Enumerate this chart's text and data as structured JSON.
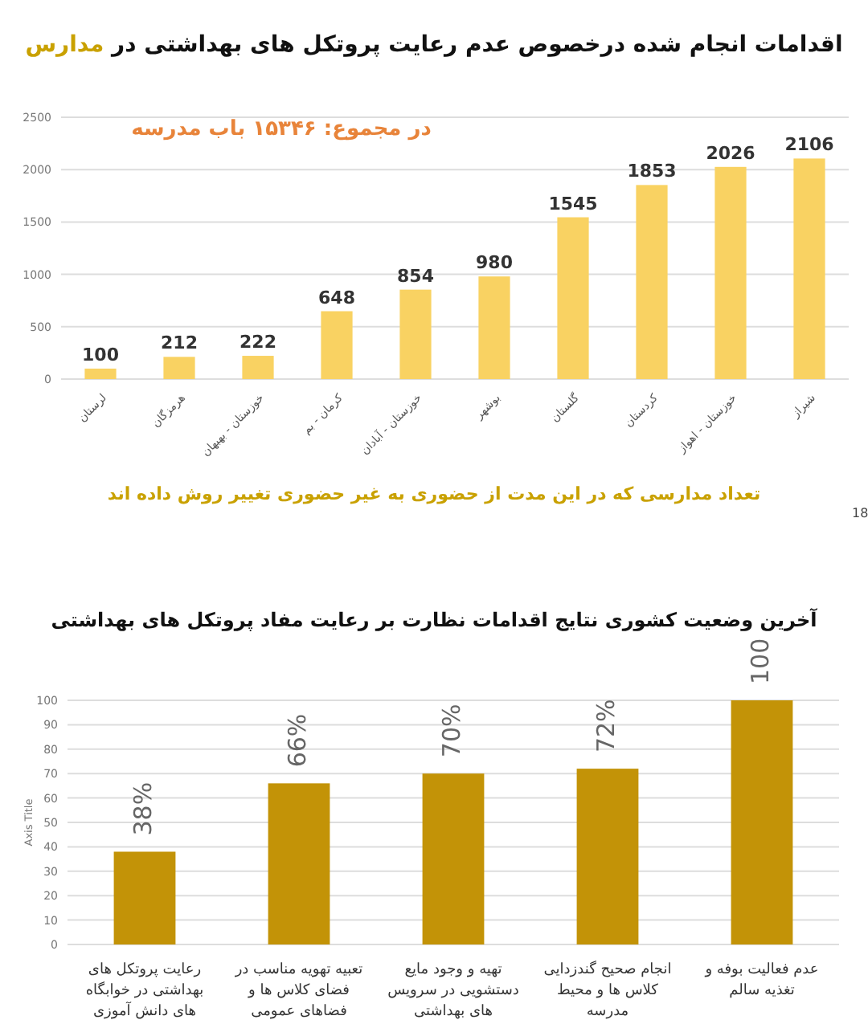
{
  "chart_data": [
    {
      "type": "bar",
      "title": "اقدامات انجام شده درخصوص عدم رعایت پروتکل های بهداشتی در مدارس",
      "categories": [
        "لرستان",
        "هرمزگان",
        "خوزستان - بهبهان",
        "کرمان - بم",
        "خوزستان - آبادان",
        "بوشهر",
        "گلستان",
        "کردستان",
        "خوزستان - اهواز",
        "شیراز"
      ],
      "values": [
        100,
        212,
        222,
        648,
        854,
        980,
        1545,
        1853,
        2026,
        2106
      ],
      "color": "#f9d262",
      "ylim": [
        0,
        2500
      ],
      "yticks": [
        0,
        500,
        1000,
        1500,
        2000,
        2500
      ],
      "grid": "y",
      "data_labels": true,
      "annotations": [
        "در مجموع: ۱۵۳۴۶ باب مدرسه",
        "تعداد مدارسی که در این مدت از حضوری به غیر حضوری تغییر روش داده اند",
        "18"
      ]
    },
    {
      "type": "bar",
      "title": "آخرین وضعیت کشوری نتایج اقدامات نظارت بر رعایت مفاد پروتکل های بهداشتی",
      "ylabel": "Axis Title",
      "categories": [
        "رعایت پروتکل های بهداشتی در خوابگاه های دانش آموزی",
        "تعبیه تهویه مناسب در فضای کلاس ها و فضاهای عمومی",
        "تهیه و وجود مایع دستشویی در سرویس های بهداشتی",
        "انجام صحیح گندزدایی کلاس ها و محیط مدرسه",
        "عدم فعالیت بوفه و تغذیه سالم"
      ],
      "values": [
        38,
        66,
        70,
        72,
        100
      ],
      "value_labels": [
        "38%",
        "66%",
        "70%",
        "72%",
        "100"
      ],
      "color": "#c39307",
      "ylim": [
        0,
        100
      ],
      "yticks": [
        0,
        10,
        20,
        30,
        40,
        50,
        60,
        70,
        80,
        90,
        100
      ],
      "grid": "y"
    }
  ]
}
